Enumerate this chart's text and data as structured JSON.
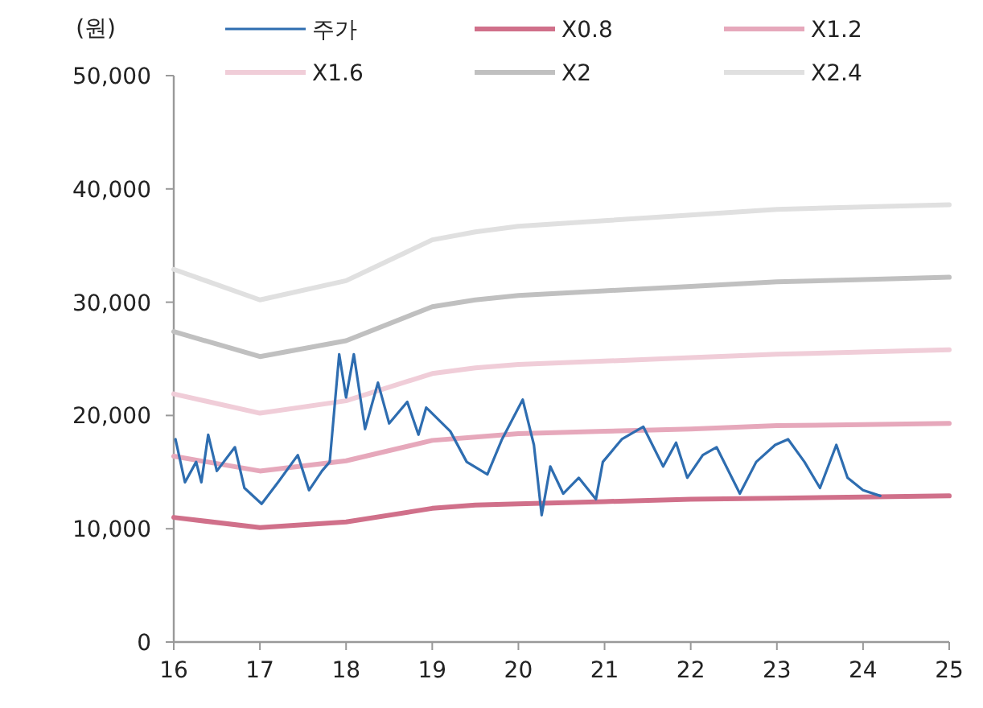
{
  "chart_data": {
    "type": "line",
    "ylabel": "(원)",
    "xlim": [
      16,
      25
    ],
    "xticks": [
      16,
      17,
      18,
      19,
      20,
      21,
      22,
      23,
      24,
      25
    ],
    "ylim": [
      0,
      50000
    ],
    "yticks": [
      {
        "value": 0,
        "label": "0"
      },
      {
        "value": 10000,
        "label": "10,000"
      },
      {
        "value": 20000,
        "label": "20,000"
      },
      {
        "value": 30000,
        "label": "30,000"
      },
      {
        "value": 40000,
        "label": "40,000"
      },
      {
        "value": 50000,
        "label": "50,000"
      }
    ],
    "legend": "top",
    "grid": false,
    "series": [
      {
        "name": "주가",
        "color": "#2e6db0",
        "x": [
          16.02,
          16.13,
          16.26,
          16.32,
          16.4,
          16.5,
          16.71,
          16.82,
          17.02,
          17.21,
          17.44,
          17.57,
          17.72,
          17.81,
          17.92,
          18.0,
          18.09,
          18.22,
          18.37,
          18.5,
          18.71,
          18.84,
          18.93,
          19.21,
          19.4,
          19.64,
          19.81,
          20.05,
          20.18,
          20.27,
          20.37,
          20.52,
          20.7,
          20.9,
          20.98,
          21.2,
          21.45,
          21.68,
          21.83,
          21.96,
          22.14,
          22.3,
          22.57,
          22.76,
          22.98,
          23.13,
          23.32,
          23.5,
          23.69,
          23.82,
          24.0,
          24.2
        ],
        "values": [
          17900,
          14100,
          15900,
          14100,
          18300,
          15100,
          17200,
          13600,
          12200,
          14100,
          16500,
          13400,
          15100,
          15900,
          25400,
          21600,
          25400,
          18800,
          22900,
          19300,
          21200,
          18300,
          20700,
          18600,
          15900,
          14800,
          17900,
          21400,
          17400,
          11200,
          15500,
          13100,
          14500,
          12600,
          15900,
          17900,
          19000,
          15500,
          17600,
          14500,
          16500,
          17200,
          13100,
          15900,
          17400,
          17900,
          15900,
          13600,
          17400,
          14500,
          13400,
          12900
        ]
      },
      {
        "name": "X0.8",
        "color": "#d0708a",
        "x": [
          16,
          17,
          18,
          19,
          19.5,
          20,
          21,
          22,
          23,
          24,
          25
        ],
        "values": [
          11000,
          10100,
          10600,
          11800,
          12100,
          12200,
          12400,
          12600,
          12700,
          12800,
          12900
        ]
      },
      {
        "name": "X1.2",
        "color": "#e6a8bb",
        "x": [
          16,
          17,
          18,
          19,
          19.5,
          20,
          21,
          22,
          23,
          24,
          25
        ],
        "values": [
          16400,
          15100,
          16000,
          17800,
          18100,
          18400,
          18600,
          18800,
          19100,
          19200,
          19300
        ]
      },
      {
        "name": "X1.6",
        "color": "#f0cdd8",
        "x": [
          16,
          17,
          18,
          19,
          19.5,
          20,
          21,
          22,
          23,
          24,
          25
        ],
        "values": [
          21900,
          20200,
          21300,
          23700,
          24200,
          24500,
          24800,
          25100,
          25400,
          25600,
          25800
        ]
      },
      {
        "name": "X2",
        "color": "#c0c0c0",
        "x": [
          16,
          17,
          18,
          19,
          19.5,
          20,
          21,
          22,
          23,
          24,
          25
        ],
        "values": [
          27400,
          25200,
          26600,
          29600,
          30200,
          30600,
          31000,
          31400,
          31800,
          32000,
          32200
        ]
      },
      {
        "name": "X2.4",
        "color": "#e0e0e0",
        "x": [
          16,
          17,
          18,
          19,
          19.5,
          20,
          21,
          22,
          23,
          24,
          25
        ],
        "values": [
          32900,
          30200,
          31900,
          35500,
          36200,
          36700,
          37200,
          37700,
          38200,
          38400,
          38600
        ]
      }
    ]
  }
}
